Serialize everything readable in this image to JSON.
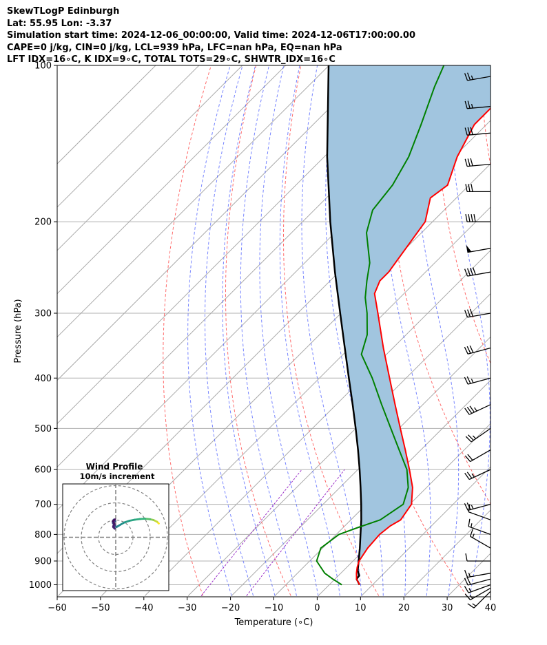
{
  "title_lines": [
    "SkewTLogP Edinburgh",
    "Lat: 55.95   Lon: -3.37",
    "Simulation start time: 2024-12-06_00:00:00, Valid time: 2024-12-06T17:00:00.00",
    "CAPE=0 j/kg, CIN=0 j/kg, LCL=939 hPa, LFC=nan hPa, EQ=nan hPa",
    "LFT IDX=16∘C, K IDX=9∘C, TOTAL TOTS=29∘C, SHWTR_IDX=16∘C"
  ],
  "colors": {
    "temperature": "#ff0000",
    "dewpoint": "#008000",
    "parcel": "#000000",
    "fill": "#a1c5df",
    "dry_adiabat": "#ff6b6b",
    "moist_adiabat": "#4a5cff",
    "mixing_ratio": "#9b30c8",
    "isotherm": "#aaaaaa"
  },
  "chart_data": {
    "type": "skewt",
    "xlabel": "Temperature (∘C)",
    "ylabel": "Pressure (hPa)",
    "xlim": [
      -60,
      40
    ],
    "ylim": [
      1040,
      100
    ],
    "x_ticks": [
      "−60",
      "−50",
      "−40",
      "−30",
      "−20",
      "−10",
      "0",
      "10",
      "20",
      "30",
      "40"
    ],
    "x_tick_values": [
      -60,
      -50,
      -40,
      -30,
      -20,
      -10,
      0,
      10,
      20,
      30,
      40
    ],
    "y_ticks": [
      "1000",
      "900",
      "800",
      "700",
      "600",
      "500",
      "400",
      "300",
      "200",
      "100"
    ],
    "y_tick_values": [
      1000,
      900,
      800,
      700,
      600,
      500,
      400,
      300,
      200,
      100
    ],
    "grid": true,
    "temperature_profile": [
      {
        "p": 1000,
        "t": 7.0
      },
      {
        "p": 975,
        "t": 5.0
      },
      {
        "p": 950,
        "t": 3.6
      },
      {
        "p": 925,
        "t": 2.4
      },
      {
        "p": 900,
        "t": 1.4
      },
      {
        "p": 850,
        "t": 0.4
      },
      {
        "p": 800,
        "t": 0.0
      },
      {
        "p": 770,
        "t": 0.5
      },
      {
        "p": 750,
        "t": 1.5
      },
      {
        "p": 700,
        "t": 0.4
      },
      {
        "p": 650,
        "t": -3.2
      },
      {
        "p": 600,
        "t": -8.1
      },
      {
        "p": 550,
        "t": -13.6
      },
      {
        "p": 500,
        "t": -19.7
      },
      {
        "p": 450,
        "t": -26.4
      },
      {
        "p": 400,
        "t": -33.8
      },
      {
        "p": 350,
        "t": -42.2
      },
      {
        "p": 300,
        "t": -51.5
      },
      {
        "p": 275,
        "t": -56.8
      },
      {
        "p": 260,
        "t": -58.5
      },
      {
        "p": 250,
        "t": -58.5
      },
      {
        "p": 200,
        "t": -61.7
      },
      {
        "p": 180,
        "t": -66.0
      },
      {
        "p": 170,
        "t": -65.0
      },
      {
        "p": 150,
        "t": -69.3
      },
      {
        "p": 130,
        "t": -72.8
      },
      {
        "p": 120,
        "t": -72.8
      },
      {
        "p": 110,
        "t": -76.4
      },
      {
        "p": 100,
        "t": -79.7
      }
    ],
    "dewpoint_profile": [
      {
        "p": 1000,
        "t": 2.9
      },
      {
        "p": 975,
        "t": -0.5
      },
      {
        "p": 950,
        "t": -3.7
      },
      {
        "p": 900,
        "t": -8.4
      },
      {
        "p": 850,
        "t": -10.4
      },
      {
        "p": 800,
        "t": -9.4
      },
      {
        "p": 775,
        "t": -6.5
      },
      {
        "p": 750,
        "t": -3.2
      },
      {
        "p": 700,
        "t": -1.5
      },
      {
        "p": 650,
        "t": -4.2
      },
      {
        "p": 600,
        "t": -8.7
      },
      {
        "p": 550,
        "t": -15.0
      },
      {
        "p": 500,
        "t": -21.9
      },
      {
        "p": 450,
        "t": -29.5
      },
      {
        "p": 400,
        "t": -37.8
      },
      {
        "p": 360,
        "t": -45.8
      },
      {
        "p": 330,
        "t": -49.0
      },
      {
        "p": 300,
        "t": -54.0
      },
      {
        "p": 280,
        "t": -58.0
      },
      {
        "p": 260,
        "t": -61.5
      },
      {
        "p": 240,
        "t": -65.0
      },
      {
        "p": 210,
        "t": -72.7
      },
      {
        "p": 190,
        "t": -76.5
      },
      {
        "p": 170,
        "t": -77.7
      },
      {
        "p": 150,
        "t": -80.5
      },
      {
        "p": 130,
        "t": -85.1
      },
      {
        "p": 110,
        "t": -90.7
      },
      {
        "p": 100,
        "t": -93.5
      }
    ],
    "parcel_profile": [
      {
        "p": 1000,
        "t": 7.0
      },
      {
        "p": 975,
        "t": 5.0
      },
      {
        "p": 960,
        "t": 4.8
      },
      {
        "p": 939,
        "t": 3.3
      },
      {
        "p": 900,
        "t": 1.3
      },
      {
        "p": 850,
        "t": -1.4
      },
      {
        "p": 800,
        "t": -4.4
      },
      {
        "p": 750,
        "t": -7.6
      },
      {
        "p": 700,
        "t": -11.2
      },
      {
        "p": 650,
        "t": -15.2
      },
      {
        "p": 600,
        "t": -19.6
      },
      {
        "p": 550,
        "t": -24.5
      },
      {
        "p": 500,
        "t": -30.0
      },
      {
        "p": 450,
        "t": -36.2
      },
      {
        "p": 400,
        "t": -43.2
      },
      {
        "p": 350,
        "t": -51.1
      },
      {
        "p": 300,
        "t": -60.2
      },
      {
        "p": 250,
        "t": -70.9
      },
      {
        "p": 200,
        "t": -83.6
      },
      {
        "p": 150,
        "t": -99.3
      },
      {
        "p": 100,
        "t": -120.1
      }
    ],
    "wind_barbs": [
      {
        "p": 1030,
        "speed_kt": 15,
        "dir": 225
      },
      {
        "p": 1015,
        "speed_kt": 15,
        "dir": 240
      },
      {
        "p": 1000,
        "speed_kt": 15,
        "dir": 250
      },
      {
        "p": 975,
        "speed_kt": 20,
        "dir": 255
      },
      {
        "p": 950,
        "speed_kt": 15,
        "dir": 260
      },
      {
        "p": 900,
        "speed_kt": 10,
        "dir": 270
      },
      {
        "p": 850,
        "speed_kt": 15,
        "dir": 300
      },
      {
        "p": 800,
        "speed_kt": 15,
        "dir": 290
      },
      {
        "p": 750,
        "speed_kt": 10,
        "dir": 290
      },
      {
        "p": 700,
        "speed_kt": 25,
        "dir": 255
      },
      {
        "p": 600,
        "speed_kt": 25,
        "dir": 245
      },
      {
        "p": 550,
        "speed_kt": 20,
        "dir": 240
      },
      {
        "p": 500,
        "speed_kt": 25,
        "dir": 235
      },
      {
        "p": 450,
        "speed_kt": 35,
        "dir": 245
      },
      {
        "p": 400,
        "speed_kt": 25,
        "dir": 255
      },
      {
        "p": 350,
        "speed_kt": 30,
        "dir": 255
      },
      {
        "p": 300,
        "speed_kt": 30,
        "dir": 260
      },
      {
        "p": 250,
        "speed_kt": 40,
        "dir": 260
      },
      {
        "p": 225,
        "speed_kt": 50,
        "dir": 260
      },
      {
        "p": 200,
        "speed_kt": 40,
        "dir": 270
      },
      {
        "p": 175,
        "speed_kt": 30,
        "dir": 270
      },
      {
        "p": 155,
        "speed_kt": 30,
        "dir": 265
      },
      {
        "p": 135,
        "speed_kt": 30,
        "dir": 265
      },
      {
        "p": 120,
        "speed_kt": 25,
        "dir": 265
      },
      {
        "p": 105,
        "speed_kt": 25,
        "dir": 260
      }
    ],
    "hodograph": {
      "title": "Wind Profile",
      "subtitle": "10m/s increment",
      "points": [
        {
          "u": 25,
          "v": 8
        },
        {
          "u": 24,
          "v": 9
        },
        {
          "u": 22,
          "v": 10
        },
        {
          "u": 20,
          "v": 10.5
        },
        {
          "u": 17,
          "v": 10.8
        },
        {
          "u": 14,
          "v": 10.6
        },
        {
          "u": 11,
          "v": 10.2
        },
        {
          "u": 8,
          "v": 9.6
        },
        {
          "u": 5,
          "v": 8.6
        },
        {
          "u": 3,
          "v": 7.5
        },
        {
          "u": 1.5,
          "v": 6.6
        },
        {
          "u": 0.5,
          "v": 6.0
        },
        {
          "u": -0.5,
          "v": 6.6
        },
        {
          "u": -1.3,
          "v": 7.8
        },
        {
          "u": -1.8,
          "v": 9.0
        },
        {
          "u": -1.2,
          "v": 10.2
        },
        {
          "u": -0.3,
          "v": 9.4
        },
        {
          "u": -1.6,
          "v": 8.2
        },
        {
          "u": -0.4,
          "v": 7.0
        },
        {
          "u": -1.4,
          "v": 5.8
        },
        {
          "u": -0.6,
          "v": 5.0
        },
        {
          "u": -1.5,
          "v": 6.4
        },
        {
          "u": -0.8,
          "v": 7.8
        },
        {
          "u": -1.6,
          "v": 9.4
        },
        {
          "u": -0.5,
          "v": 10.4
        }
      ]
    }
  }
}
